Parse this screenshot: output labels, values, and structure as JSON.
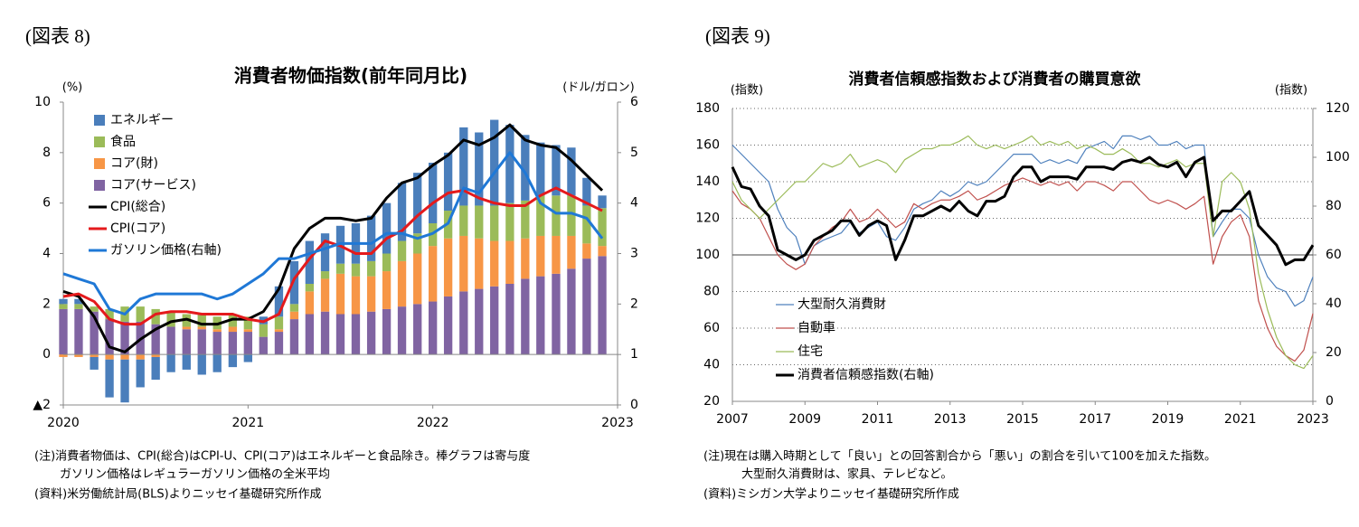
{
  "chart_data": [
    {
      "type": "bar",
      "figure_label": "(図表 8)",
      "title": "消費者物価指数(前年同月比)",
      "ylabel": "(%)",
      "y2label": "(ドル/ガロン)",
      "x": [
        2020.0,
        2020.083,
        2020.167,
        2020.25,
        2020.333,
        2020.417,
        2020.5,
        2020.583,
        2020.667,
        2020.75,
        2020.833,
        2020.917,
        2021.0,
        2021.083,
        2021.167,
        2021.25,
        2021.333,
        2021.417,
        2021.5,
        2021.583,
        2021.667,
        2021.75,
        2021.833,
        2021.917,
        2022.0,
        2022.083,
        2022.167,
        2022.25,
        2022.333,
        2022.417,
        2022.5,
        2022.583,
        2022.667,
        2022.75,
        2022.833,
        2022.917
      ],
      "xlim": [
        2020,
        2023
      ],
      "xticks": [
        2020,
        2021,
        2022,
        2023
      ],
      "ylim": [
        -2,
        10
      ],
      "yticks": [
        {
          "value": -2,
          "label": "▲2"
        },
        0,
        2,
        4,
        6,
        8,
        10
      ],
      "y2lim": [
        0,
        6
      ],
      "y2ticks": [
        0,
        1,
        2,
        3,
        4,
        5,
        6
      ],
      "legend": "upper left",
      "stacked": true,
      "series": [
        {
          "name": "エネルギー",
          "type": "bar",
          "color": "#4a7ebb",
          "values": [
            0.2,
            0.2,
            -0.5,
            -1.5,
            -1.7,
            -1.1,
            -0.9,
            -0.7,
            -0.6,
            -0.8,
            -0.7,
            -0.5,
            -0.3,
            0.3,
            1.2,
            1.7,
            1.7,
            1.5,
            1.5,
            1.6,
            1.8,
            2.0,
            2.3,
            2.4,
            2.4,
            2.3,
            3.1,
            2.9,
            3.4,
            3.1,
            2.6,
            2.1,
            2.0,
            1.9,
            1.1,
            0.5
          ]
        },
        {
          "name": "食品",
          "type": "bar",
          "color": "#9bbb59",
          "values": [
            0.2,
            0.2,
            0.2,
            0.4,
            0.6,
            0.6,
            0.6,
            0.6,
            0.5,
            0.5,
            0.5,
            0.5,
            0.5,
            0.5,
            0.5,
            0.3,
            0.3,
            0.3,
            0.4,
            0.5,
            0.6,
            0.7,
            0.8,
            0.8,
            0.9,
            1.1,
            1.2,
            1.3,
            1.4,
            1.5,
            1.5,
            1.6,
            1.6,
            1.6,
            1.5,
            1.5
          ]
        },
        {
          "name": "コア(財)",
          "type": "bar",
          "color": "#f79646",
          "values": [
            -0.1,
            -0.1,
            -0.1,
            -0.2,
            -0.2,
            -0.2,
            -0.1,
            0.0,
            0.1,
            0.1,
            0.1,
            0.2,
            0.1,
            0.0,
            0.1,
            0.3,
            0.9,
            1.3,
            1.6,
            1.5,
            1.4,
            1.5,
            1.8,
            2.0,
            2.2,
            2.3,
            2.2,
            2.0,
            1.8,
            1.7,
            1.6,
            1.6,
            1.5,
            1.3,
            0.6,
            0.4
          ]
        },
        {
          "name": "コア(サービス)",
          "type": "bar",
          "color": "#8064a2",
          "values": [
            1.8,
            1.8,
            1.7,
            1.4,
            1.3,
            1.3,
            1.2,
            1.1,
            1.0,
            1.0,
            0.9,
            0.9,
            0.9,
            0.7,
            0.9,
            1.4,
            1.6,
            1.7,
            1.6,
            1.6,
            1.7,
            1.8,
            1.9,
            2.0,
            2.1,
            2.3,
            2.5,
            2.6,
            2.7,
            2.8,
            3.0,
            3.1,
            3.2,
            3.4,
            3.8,
            3.9
          ]
        },
        {
          "name": "CPI(総合)",
          "type": "line",
          "color": "#000000",
          "values": [
            2.5,
            2.3,
            1.5,
            0.3,
            0.1,
            0.6,
            1.0,
            1.3,
            1.4,
            1.2,
            1.2,
            1.4,
            1.4,
            1.7,
            2.6,
            4.2,
            5.0,
            5.4,
            5.4,
            5.3,
            5.4,
            6.2,
            6.8,
            7.0,
            7.5,
            7.9,
            8.5,
            8.3,
            8.6,
            9.1,
            8.5,
            8.3,
            8.2,
            7.7,
            7.1,
            6.5
          ]
        },
        {
          "name": "CPI(コア)",
          "type": "line",
          "color": "#e41a1c",
          "values": [
            2.3,
            2.4,
            2.1,
            1.4,
            1.2,
            1.2,
            1.6,
            1.7,
            1.7,
            1.6,
            1.6,
            1.6,
            1.4,
            1.3,
            1.6,
            3.0,
            3.8,
            4.5,
            4.3,
            4.0,
            4.0,
            4.6,
            4.9,
            5.5,
            6.0,
            6.4,
            6.5,
            6.2,
            6.0,
            5.9,
            5.9,
            6.3,
            6.6,
            6.3,
            6.0,
            5.7
          ]
        },
        {
          "name": "ガソリン価格(右軸)",
          "type": "line",
          "axis": "y2",
          "color": "#1f78d6",
          "values": [
            2.6,
            2.5,
            2.4,
            1.9,
            1.8,
            2.1,
            2.2,
            2.2,
            2.2,
            2.2,
            2.1,
            2.2,
            2.4,
            2.6,
            2.9,
            2.9,
            3.0,
            3.1,
            3.2,
            3.2,
            3.2,
            3.4,
            3.4,
            3.3,
            3.4,
            3.6,
            4.3,
            4.2,
            4.6,
            5.0,
            4.6,
            4.0,
            3.8,
            3.8,
            3.7,
            3.3
          ]
        }
      ],
      "notes": [
        "(注)消費者物価は、CPI(総合)はCPI-U、CPI(コア)はエネルギーと食品除き。棒グラフは寄与度",
        "ガソリン価格はレギュラーガソリン価格の全米平均",
        "(資料)米労働統計局(BLS)よりニッセイ基礎研究所作成"
      ]
    },
    {
      "type": "line",
      "figure_label": "(図表 9)",
      "title": "消費者信頼感指数および消費者の購買意欲",
      "ylabel": "(指数)",
      "y2label": "(指数)",
      "x": [
        2007.0,
        2007.25,
        2007.5,
        2007.75,
        2008.0,
        2008.25,
        2008.5,
        2008.75,
        2009.0,
        2009.25,
        2009.5,
        2009.75,
        2010.0,
        2010.25,
        2010.5,
        2010.75,
        2011.0,
        2011.25,
        2011.5,
        2011.75,
        2012.0,
        2012.25,
        2012.5,
        2012.75,
        2013.0,
        2013.25,
        2013.5,
        2013.75,
        2014.0,
        2014.25,
        2014.5,
        2014.75,
        2015.0,
        2015.25,
        2015.5,
        2015.75,
        2016.0,
        2016.25,
        2016.5,
        2016.75,
        2017.0,
        2017.25,
        2017.5,
        2017.75,
        2018.0,
        2018.25,
        2018.5,
        2018.75,
        2019.0,
        2019.25,
        2019.5,
        2019.75,
        2020.0,
        2020.25,
        2020.5,
        2020.75,
        2021.0,
        2021.25,
        2021.5,
        2021.75,
        2022.0,
        2022.25,
        2022.5,
        2022.75,
        2023.0
      ],
      "xlim": [
        2007,
        2023
      ],
      "xticks": [
        2007,
        2009,
        2011,
        2013,
        2015,
        2017,
        2019,
        2021,
        2023
      ],
      "ylim": [
        20,
        180
      ],
      "yticks": [
        20,
        40,
        60,
        80,
        100,
        120,
        140,
        160,
        180
      ],
      "y2lim": [
        0,
        120
      ],
      "y2ticks": [
        0,
        20,
        40,
        60,
        80,
        100,
        120
      ],
      "reference_line": 100,
      "grid": "dotted",
      "legend": "lower left",
      "series": [
        {
          "name": "大型耐久消費財",
          "color": "#4f81bd",
          "width": 1.2,
          "values": [
            160,
            155,
            150,
            145,
            140,
            125,
            115,
            110,
            95,
            105,
            108,
            110,
            112,
            118,
            112,
            115,
            118,
            110,
            108,
            115,
            125,
            128,
            130,
            135,
            132,
            135,
            140,
            138,
            140,
            145,
            150,
            155,
            155,
            155,
            150,
            152,
            150,
            152,
            150,
            158,
            160,
            162,
            158,
            165,
            165,
            163,
            165,
            160,
            160,
            162,
            158,
            160,
            160,
            110,
            118,
            125,
            125,
            120,
            100,
            88,
            82,
            80,
            72,
            75,
            88
          ]
        },
        {
          "name": "自動車",
          "color": "#c0504d",
          "width": 1.2,
          "values": [
            135,
            128,
            125,
            120,
            110,
            100,
            95,
            92,
            95,
            105,
            110,
            115,
            118,
            125,
            118,
            120,
            125,
            120,
            115,
            118,
            128,
            125,
            128,
            130,
            130,
            132,
            135,
            130,
            132,
            135,
            138,
            140,
            142,
            140,
            138,
            140,
            138,
            140,
            135,
            140,
            140,
            138,
            135,
            140,
            140,
            135,
            130,
            128,
            130,
            128,
            125,
            128,
            132,
            95,
            110,
            118,
            122,
            110,
            75,
            60,
            50,
            45,
            42,
            48,
            68
          ]
        },
        {
          "name": "住宅",
          "color": "#9bbb59",
          "width": 1.2,
          "values": [
            140,
            130,
            125,
            120,
            125,
            130,
            135,
            140,
            140,
            145,
            150,
            148,
            150,
            155,
            148,
            150,
            152,
            150,
            145,
            152,
            155,
            158,
            158,
            160,
            160,
            162,
            165,
            160,
            158,
            160,
            158,
            160,
            162,
            165,
            160,
            162,
            160,
            162,
            158,
            160,
            158,
            155,
            155,
            158,
            155,
            150,
            150,
            148,
            150,
            152,
            148,
            150,
            150,
            110,
            140,
            145,
            140,
            125,
            90,
            70,
            55,
            45,
            40,
            38,
            45
          ]
        },
        {
          "name": "消費者信頼感指数(右軸)",
          "axis": "y2",
          "color": "#000000",
          "width": 3,
          "values": [
            96,
            88,
            87,
            80,
            76,
            62,
            60,
            58,
            60,
            66,
            68,
            70,
            74,
            74,
            68,
            72,
            74,
            72,
            58,
            66,
            76,
            76,
            78,
            80,
            78,
            82,
            78,
            76,
            82,
            82,
            84,
            92,
            96,
            96,
            90,
            92,
            92,
            92,
            91,
            96,
            96,
            96,
            95,
            98,
            99,
            98,
            100,
            97,
            96,
            98,
            92,
            98,
            100,
            74,
            78,
            78,
            82,
            86,
            72,
            68,
            64,
            56,
            58,
            58,
            64
          ]
        }
      ],
      "notes": [
        "(注)現在は購入時期として「良い」との回答割合から「悪い」の割合を引いて100を加えた指数。",
        "大型耐久消費財は、家具、テレビなど。",
        "(資料)ミシガン大学よりニッセイ基礎研究所作成"
      ]
    }
  ]
}
